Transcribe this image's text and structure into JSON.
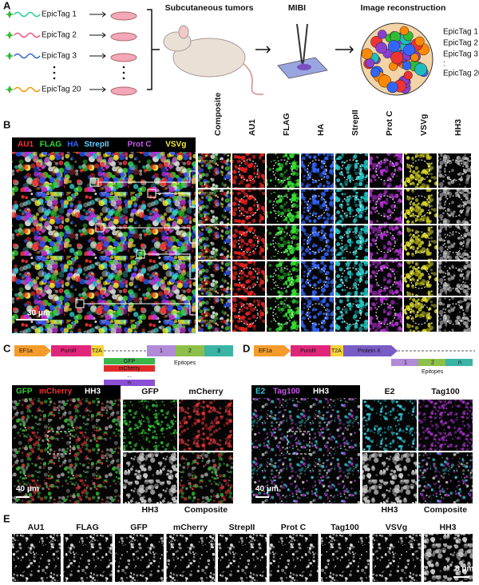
{
  "panel_a": {
    "label": "A",
    "tags": [
      "EpicTag 1",
      "EpicTag 2",
      "EpicTag 3",
      "EpicTag 20"
    ],
    "steps": [
      "Subcutaneous tumors",
      "MIBI",
      "Image reconstruction"
    ],
    "legend": [
      "EpicTag 1",
      "EpicTag 2",
      "EpicTag 3",
      ":",
      "EpicTag 20"
    ]
  },
  "panel_b": {
    "label": "B",
    "overlay": [
      "AU1",
      "FLAG",
      "HA",
      "StrepII",
      "Prot C",
      "VSVg"
    ],
    "columns": [
      "Composite",
      "AU1",
      "FLAG",
      "HA",
      "StrepII",
      "Prot C",
      "VSVg",
      "HH3"
    ],
    "scale_bar": "30 μm"
  },
  "panel_c": {
    "label": "C",
    "construct": {
      "promoter": "EF1a",
      "resistance": "PuroR",
      "linker": "T2A",
      "proteins": [
        "GFP",
        "mCherry",
        "...",
        "n"
      ],
      "epitopes": [
        "1",
        "2",
        "3"
      ],
      "epitopes_label": "Epitopes"
    },
    "overlay": [
      "GFP",
      "mCherry",
      "HH3"
    ],
    "panels": [
      "GFP",
      "mCherry",
      "HH3",
      "Composite"
    ],
    "scale_bar": "40 μm"
  },
  "panel_d": {
    "label": "D",
    "construct": {
      "promoter": "EF1a",
      "resistance": "PuroR",
      "linker": "T2A",
      "proteins": [
        "Protein X"
      ],
      "epitopes": [
        "1",
        "2",
        "n"
      ],
      "epitopes_label": "Epitopes"
    },
    "overlay": [
      "E2",
      "Tag100",
      "HH3"
    ],
    "panels": [
      "E2",
      "Tag100",
      "HH3",
      "Composite"
    ],
    "scale_bar": "40 μm"
  },
  "panel_e": {
    "label": "E",
    "columns": [
      "AU1",
      "FLAG",
      "GFP",
      "mCherry",
      "StrepII",
      "Prot C",
      "Tag100",
      "VSVg",
      "HH3"
    ],
    "scale_bar": "8 μm"
  }
}
